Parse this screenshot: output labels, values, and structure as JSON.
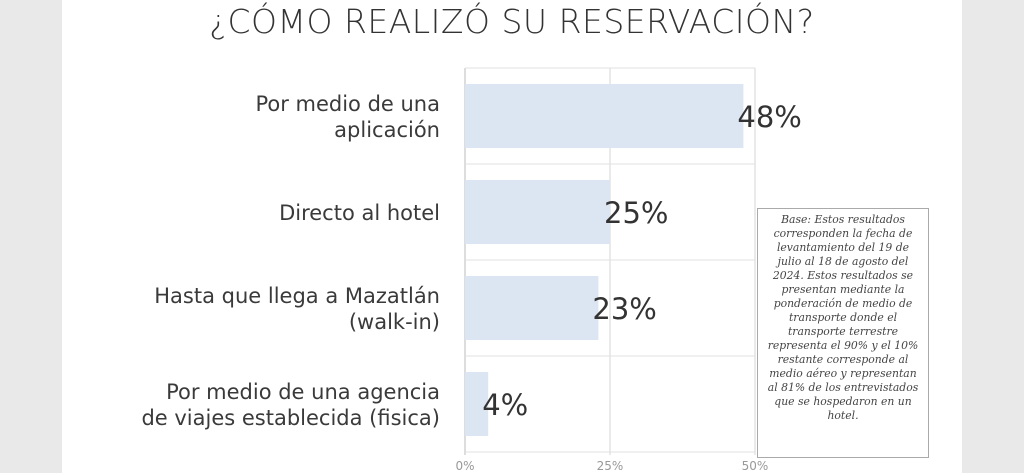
{
  "chart_data": {
    "type": "bar",
    "orientation": "horizontal",
    "title": "¿CÓMO REALIZÓ SU RESERVACIÓN?",
    "categories": [
      [
        "Por medio de una",
        "aplicación"
      ],
      [
        "Directo al hotel"
      ],
      [
        "Hasta que llega a Mazatlán",
        "(walk-in)"
      ],
      [
        "Por medio de una agencia",
        "de viajes establecida (fisica)"
      ]
    ],
    "values": [
      48,
      25,
      23,
      4
    ],
    "data_labels": [
      "48%",
      "25%",
      "23%",
      "4%"
    ],
    "xlim": [
      0,
      50
    ],
    "x_ticks": [
      "0%",
      "25%",
      "50%"
    ],
    "grid": true,
    "bar_color": "#dce6f2"
  },
  "note": {
    "text": "Base: Estos resultados corresponden la fecha de levantamiento del 19 de julio al 18 de agosto del 2024. Estos resultados se presentan mediante la ponderación de medio de transporte donde el transporte terrestre representa el 90% y el 10% restante corresponde al medio aéreo y representan al 81% de los entrevistados que se hospedaron en un hotel."
  }
}
